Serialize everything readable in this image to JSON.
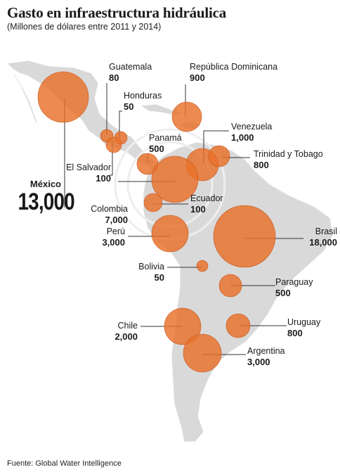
{
  "title": "Gasto en infraestructura hidráulica",
  "subtitle": "(Millones de dólares entre 2011 y 2014)",
  "source": "Fuente: Global Water Intelligence",
  "colors": {
    "bubble": "#e8702a",
    "bubble_dark": "#d65a1e",
    "land": "#d9d9d9",
    "line": "#333333"
  },
  "countries": [
    {
      "id": "mexico",
      "name": "México",
      "value_label": "13,000",
      "value": 13000
    },
    {
      "id": "guatemala",
      "name": "Guatemala",
      "value_label": "80",
      "value": 80
    },
    {
      "id": "honduras",
      "name": "Honduras",
      "value_label": "50",
      "value": 50
    },
    {
      "id": "el-salvador",
      "name": "El Salvador",
      "value_label": "100",
      "value": 100
    },
    {
      "id": "republica-dominicana",
      "name": "República Dominicana",
      "value_label": "900",
      "value": 900
    },
    {
      "id": "panama",
      "name": "Panamá",
      "value_label": "500",
      "value": 500
    },
    {
      "id": "venezuela",
      "name": "Venezuela",
      "value_label": "1,000",
      "value": 1000
    },
    {
      "id": "trinidad-tobago",
      "name": "Trinidad y Tobago",
      "value_label": "800",
      "value": 800
    },
    {
      "id": "colombia",
      "name": "Colombia",
      "value_label": "7,000",
      "value": 7000
    },
    {
      "id": "ecuador",
      "name": "Ecuador",
      "value_label": "100",
      "value": 100
    },
    {
      "id": "peru",
      "name": "Perú",
      "value_label": "3,000",
      "value": 3000
    },
    {
      "id": "brasil",
      "name": "Brasil",
      "value_label": "18,000",
      "value": 18000
    },
    {
      "id": "bolivia",
      "name": "Bolivia",
      "value_label": "50",
      "value": 50
    },
    {
      "id": "paraguay",
      "name": "Paraguay",
      "value_label": "500",
      "value": 500
    },
    {
      "id": "uruguay",
      "name": "Uruguay",
      "value_label": "800",
      "value": 800
    },
    {
      "id": "chile",
      "name": "Chile",
      "value_label": "2,000",
      "value": 2000
    },
    {
      "id": "argentina",
      "name": "Argentina",
      "value_label": "3,000",
      "value": 3000
    }
  ]
}
